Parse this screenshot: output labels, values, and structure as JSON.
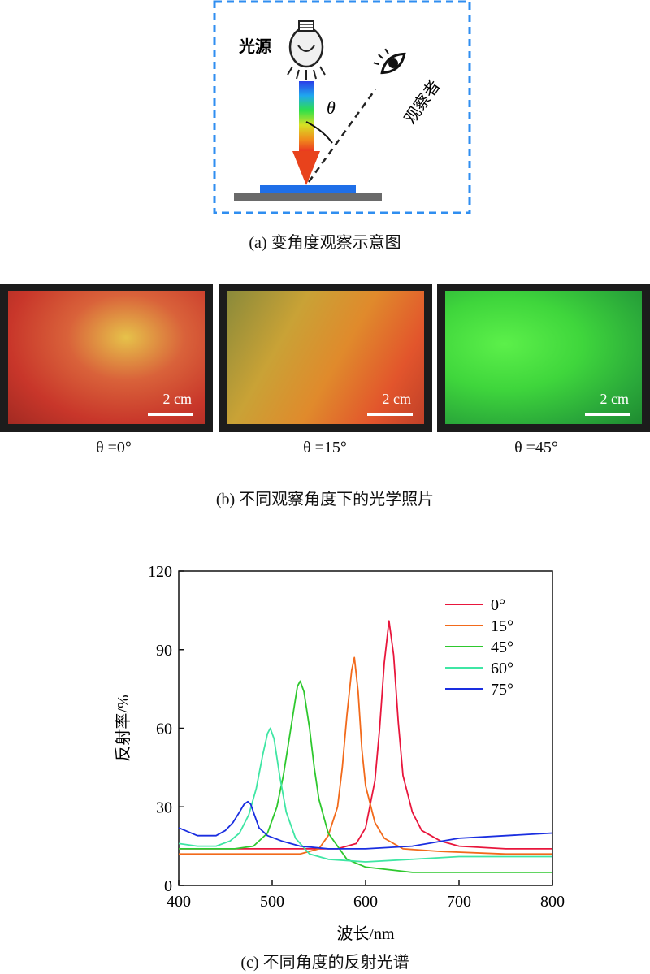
{
  "diagram": {
    "light_label": "光源",
    "observer_label": "观察者",
    "theta_label": "θ",
    "caption": "(a) 变角度观察示意图"
  },
  "photos": [
    {
      "angle_label": "θ =0°",
      "scale": "2 cm",
      "tint": "#d94a2e",
      "tint2": "#e6c24a"
    },
    {
      "angle_label": "θ =15°",
      "scale": "2 cm",
      "tint": "#c8a030",
      "tint2": "#e0552c"
    },
    {
      "angle_label": "θ =45°",
      "scale": "2 cm",
      "tint": "#3fd63c",
      "tint2": "#2aa83a"
    }
  ],
  "photos_caption": "(b) 不同观察角度下的光学照片",
  "chart_caption": "(c) 不同角度的反射光谱",
  "chart_data": {
    "type": "line",
    "xlabel": "波长/nm",
    "ylabel": "反射率/%",
    "xlim": [
      400,
      800
    ],
    "ylim": [
      0,
      120
    ],
    "xticks": [
      400,
      500,
      600,
      700,
      800
    ],
    "yticks": [
      0,
      30,
      60,
      90,
      120
    ],
    "grid": false,
    "legend_position": "top-right",
    "series": [
      {
        "name": "0°",
        "color": "#e8163c",
        "x": [
          400,
          450,
          500,
          540,
          570,
          590,
          600,
          610,
          615,
          620,
          625,
          630,
          635,
          640,
          650,
          660,
          680,
          700,
          750,
          800
        ],
        "y": [
          14,
          14,
          14,
          14,
          14,
          16,
          22,
          40,
          60,
          85,
          101,
          88,
          62,
          42,
          28,
          21,
          17,
          15,
          14,
          14
        ]
      },
      {
        "name": "15°",
        "color": "#f26a1b",
        "x": [
          400,
          450,
          500,
          530,
          550,
          560,
          570,
          575,
          580,
          585,
          588,
          592,
          596,
          600,
          610,
          620,
          640,
          680,
          750,
          800
        ],
        "y": [
          12,
          12,
          12,
          12,
          14,
          19,
          30,
          45,
          65,
          82,
          87,
          74,
          52,
          38,
          24,
          18,
          14,
          13,
          12,
          12
        ]
      },
      {
        "name": "45°",
        "color": "#2ec82e",
        "x": [
          400,
          430,
          460,
          480,
          495,
          505,
          512,
          520,
          527,
          530,
          534,
          540,
          545,
          550,
          560,
          580,
          600,
          650,
          700,
          800
        ],
        "y": [
          14,
          14,
          14,
          15,
          20,
          30,
          42,
          60,
          76,
          78,
          74,
          60,
          45,
          33,
          20,
          10,
          7,
          5,
          5,
          5
        ]
      },
      {
        "name": "60°",
        "color": "#3fe6a4",
        "x": [
          400,
          420,
          440,
          455,
          465,
          475,
          483,
          490,
          495,
          498,
          502,
          508,
          515,
          525,
          540,
          560,
          600,
          700,
          800
        ],
        "y": [
          16,
          15,
          15,
          17,
          20,
          27,
          37,
          50,
          58,
          60,
          56,
          42,
          28,
          18,
          12,
          10,
          9,
          11,
          11
        ]
      },
      {
        "name": "75°",
        "color": "#1a2ee0",
        "x": [
          400,
          420,
          440,
          450,
          458,
          465,
          470,
          474,
          477,
          481,
          486,
          495,
          510,
          530,
          560,
          600,
          650,
          700,
          750,
          800
        ],
        "y": [
          22,
          19,
          19,
          21,
          24,
          28,
          31,
          32,
          31,
          27,
          22,
          19,
          17,
          15,
          14,
          14,
          15,
          18,
          19,
          20
        ]
      }
    ]
  }
}
